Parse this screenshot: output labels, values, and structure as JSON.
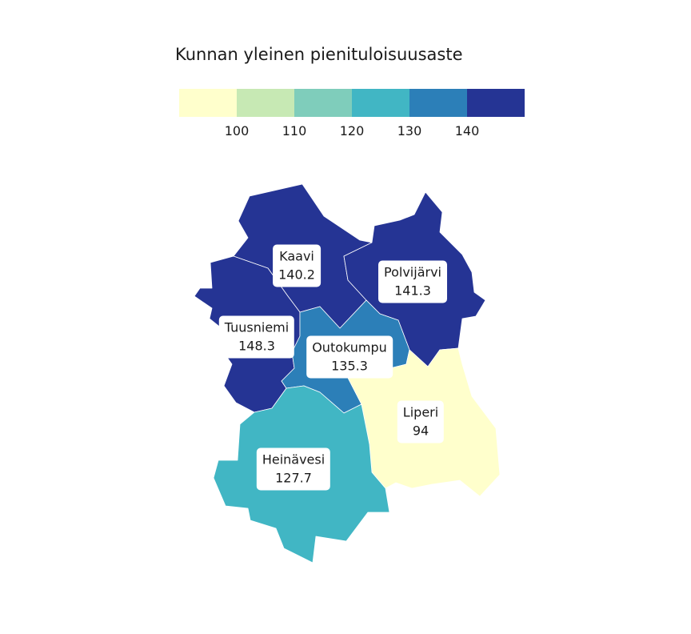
{
  "map": {
    "title": "Kunnan yleinen pienituloisuusaste",
    "legend": {
      "bins": [
        {
          "color": "#ffffcc"
        },
        {
          "color": "#c7e9b4"
        },
        {
          "color": "#7fcdbb"
        },
        {
          "color": "#41b6c4"
        },
        {
          "color": "#2c7fb8"
        },
        {
          "color": "#253494"
        }
      ],
      "ticks": [
        "100",
        "110",
        "120",
        "130",
        "140"
      ]
    },
    "regions": [
      {
        "name": "Kaavi",
        "value": "140.2",
        "color": "#253494"
      },
      {
        "name": "Polvijärvi",
        "value": "141.3",
        "color": "#253494"
      },
      {
        "name": "Tuusniemi",
        "value": "148.3",
        "color": "#253494"
      },
      {
        "name": "Outokumpu",
        "value": "135.3",
        "color": "#2c7fb8"
      },
      {
        "name": "Liperi",
        "value": "94",
        "color": "#ffffcc"
      },
      {
        "name": "Heinävesi",
        "value": "127.7",
        "color": "#41b6c4"
      }
    ]
  }
}
